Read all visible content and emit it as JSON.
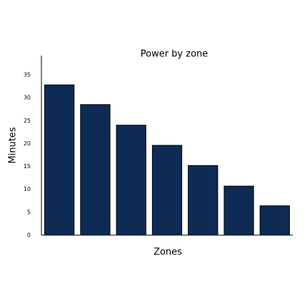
{
  "chart_data": {
    "type": "bar",
    "title": "Power by zone",
    "x_label": "Zones",
    "y_label": "Minutes",
    "categories": [
      null,
      null,
      null,
      null,
      null,
      null,
      null
    ],
    "values": [
      32.8,
      28.5,
      24.0,
      19.6,
      15.2,
      10.7,
      6.4
    ],
    "color": "#0d2b55",
    "ylim": [
      0,
      39.2
    ],
    "yticks": [
      0,
      5,
      10,
      15,
      20,
      25,
      30,
      35
    ],
    "grid": false
  }
}
